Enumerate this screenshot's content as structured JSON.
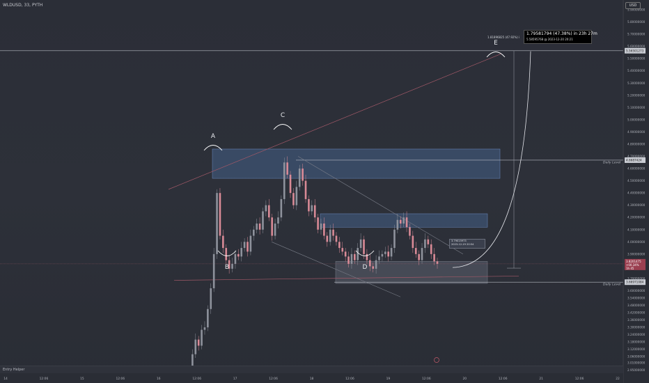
{
  "symbol_title": "WLDUSD, 33, PYTH",
  "currency_label": "USD",
  "entry_helper_label": "Entry Helper",
  "tooltip": {
    "line1": "1.79581794 (47.38%) in 23h 27m",
    "line2": "5.58595768 @ 2023-12-20  20:21"
  },
  "info_small": "1.81896825 (47.92%) i",
  "marker_small": {
    "line1": "3.79015973",
    "line2": "2023-12-19 20:54"
  },
  "daily_level_label": "Daily Level",
  "current_price_tag": [
    "3.8201475",
    "+00.34%",
    "1h 45"
  ],
  "level_tags": [
    "5.56501273",
    "4.6687424",
    "3.66971084"
  ],
  "pattern_labels": [
    "A",
    "B",
    "C",
    "D",
    "E"
  ],
  "colors": {
    "background": "#2b2e37",
    "candle_up": "#8e929c",
    "candle_down": "#d98a96",
    "zone_fill": "#4a6a9a",
    "zone_gray": "#5d6170",
    "trend_red": "#a35968",
    "trend_gray": "#7b7f8a"
  },
  "chart_data": {
    "type": "candlestick",
    "x_ticks": [
      "14",
      "12:06",
      "15",
      "12:06",
      "16",
      "12:06",
      "17",
      "12:06",
      "18",
      "12:06",
      "19",
      "12:06",
      "20",
      "12:06",
      "21",
      "12:06",
      "22"
    ],
    "y_ticks": [
      5.9,
      5.8,
      5.7,
      5.6,
      5.5,
      5.4,
      5.3,
      5.2,
      5.1,
      5.0,
      4.9,
      4.8,
      4.7,
      4.6,
      4.5,
      4.4,
      4.3,
      4.2,
      4.1,
      4.0,
      3.9,
      3.8,
      3.7,
      3.6,
      3.54,
      3.48,
      3.42,
      3.36,
      3.3,
      3.24,
      3.18,
      3.12,
      3.06,
      3.01,
      2.95
    ],
    "ylim": [
      2.93,
      5.98
    ],
    "levels": {
      "top_line": 5.565,
      "daily_level_upper": 4.669,
      "daily_level_lower": 3.67,
      "current": 3.82
    },
    "supply_zone_upper": [
      4.52,
      4.76
    ],
    "supply_zone_lower": [
      4.12,
      4.23
    ],
    "demand_zone": [
      3.66,
      3.84
    ],
    "target_price": 5.586,
    "marker_price": 3.79,
    "candles_close": [
      2.95,
      3.08,
      3.2,
      3.15,
      3.28,
      3.3,
      3.45,
      3.62,
      3.9,
      4.4,
      4.05,
      3.95,
      3.85,
      3.78,
      3.82,
      3.9,
      3.88,
      3.95,
      4.0,
      3.92,
      4.05,
      4.1,
      4.15,
      4.1,
      4.25,
      4.3,
      4.2,
      4.05,
      4.15,
      4.2,
      4.35,
      4.65,
      4.55,
      4.4,
      4.3,
      4.45,
      4.6,
      4.5,
      4.35,
      4.25,
      4.3,
      4.2,
      4.1,
      4.15,
      4.05,
      4.0,
      4.1,
      4.05,
      4.0,
      3.95,
      3.92,
      3.88,
      3.82,
      3.9,
      3.85,
      3.95,
      4.02,
      3.9,
      3.85,
      3.8,
      3.78,
      3.85,
      3.88,
      3.9,
      3.92,
      3.88,
      3.95,
      4.1,
      4.18,
      4.15,
      4.2,
      4.12,
      4.05,
      3.95,
      3.9,
      3.85,
      3.95,
      4.02,
      3.98,
      3.9,
      3.84,
      3.82
    ]
  }
}
